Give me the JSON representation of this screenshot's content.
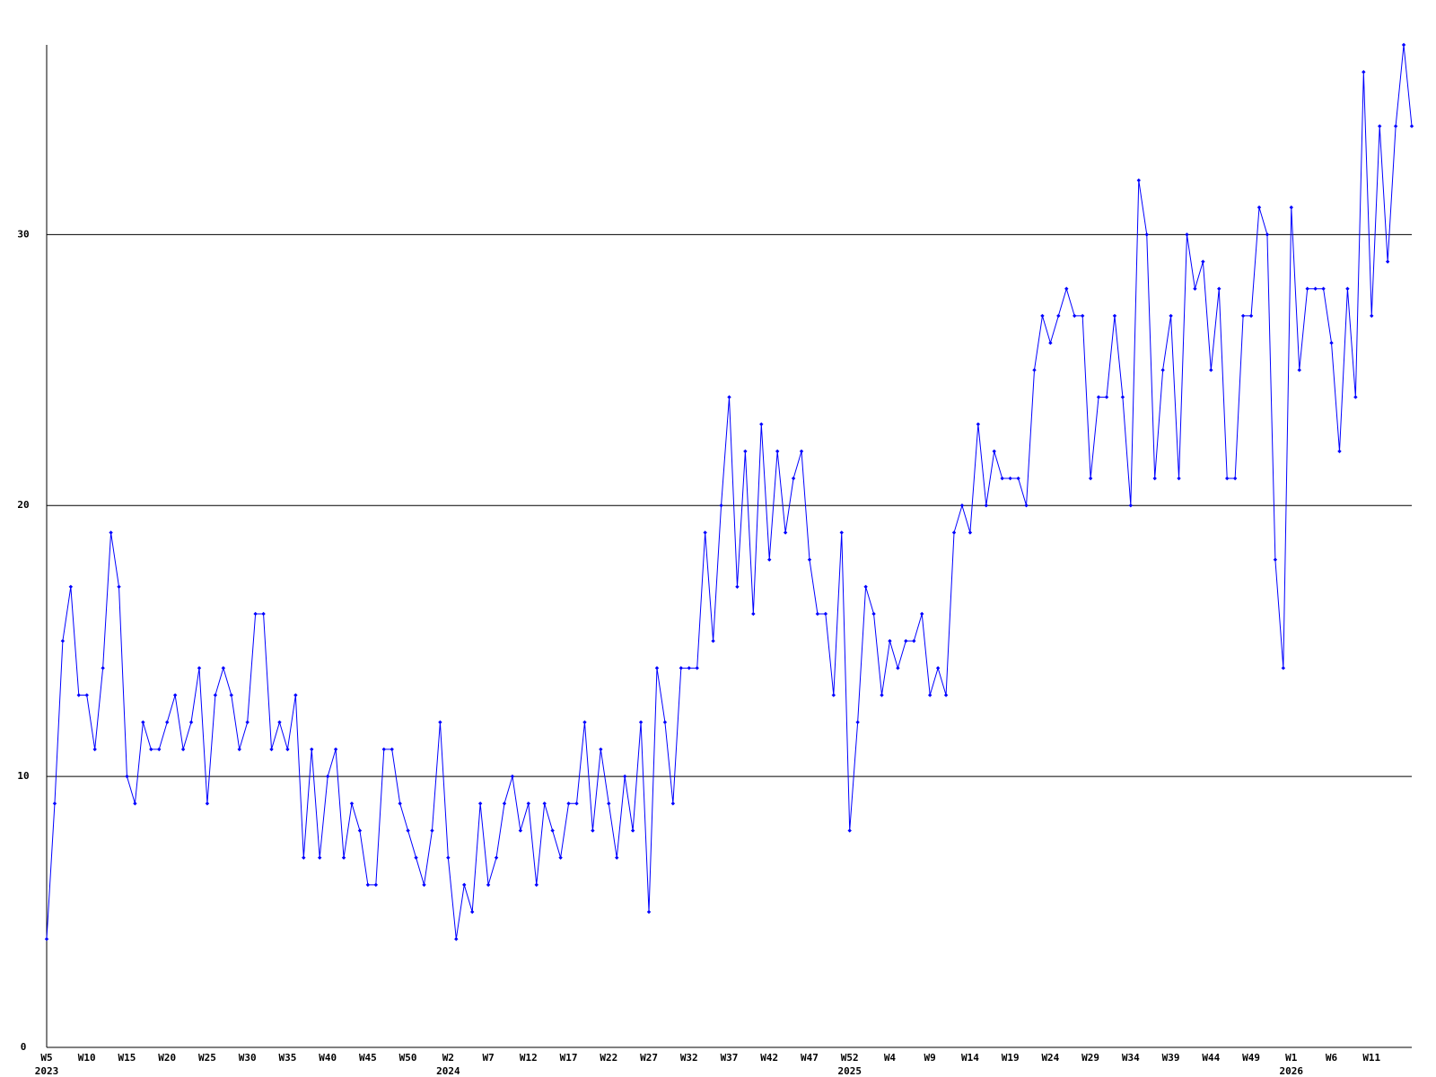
{
  "chart_data": {
    "type": "line",
    "categories": [
      "W5",
      null,
      null,
      null,
      null,
      "W10",
      null,
      null,
      null,
      null,
      "W15",
      null,
      null,
      null,
      null,
      "W20",
      null,
      null,
      null,
      null,
      "W25",
      null,
      null,
      null,
      null,
      "W30",
      null,
      null,
      null,
      null,
      "W35",
      null,
      null,
      null,
      null,
      "W40",
      null,
      null,
      null,
      null,
      "W45",
      null,
      null,
      null,
      null,
      "W50",
      null,
      null,
      null,
      null,
      "W2",
      null,
      null,
      null,
      null,
      "W7",
      null,
      null,
      null,
      null,
      "W12",
      null,
      null,
      null,
      null,
      "W17",
      null,
      null,
      null,
      null,
      "W22",
      null,
      null,
      null,
      null,
      "W27",
      null,
      null,
      null,
      null,
      "W32",
      null,
      null,
      null,
      null,
      "W37",
      null,
      null,
      null,
      null,
      "W42",
      null,
      null,
      null,
      null,
      "W47",
      null,
      null,
      null,
      null,
      "W52",
      null,
      null,
      null,
      null,
      "W4",
      null,
      null,
      null,
      null,
      "W9",
      null,
      null,
      null,
      null,
      "W14",
      null,
      null,
      null,
      null,
      "W19",
      null,
      null,
      null,
      null,
      "W24",
      null,
      null,
      null,
      null,
      "W29",
      null,
      null,
      null,
      null,
      "W34",
      null,
      null,
      null,
      null,
      "W39",
      null,
      null,
      null,
      null,
      "W44",
      null,
      null,
      null,
      null,
      "W49",
      null,
      null,
      null,
      null,
      "W1",
      null,
      null,
      null,
      null,
      "W6",
      null,
      null,
      null,
      null,
      "W11",
      null,
      null,
      null,
      null,
      null
    ],
    "years": [
      "2023",
      null,
      null,
      null,
      null,
      null,
      null,
      null,
      null,
      null,
      null,
      null,
      null,
      null,
      null,
      null,
      null,
      null,
      null,
      null,
      null,
      null,
      null,
      null,
      null,
      null,
      null,
      null,
      null,
      null,
      null,
      null,
      null,
      null,
      null,
      null,
      null,
      null,
      null,
      null,
      null,
      null,
      null,
      null,
      null,
      null,
      null,
      null,
      null,
      null,
      "2024",
      null,
      null,
      null,
      null,
      null,
      null,
      null,
      null,
      null,
      null,
      null,
      null,
      null,
      null,
      null,
      null,
      null,
      null,
      null,
      null,
      null,
      null,
      null,
      null,
      null,
      null,
      null,
      null,
      null,
      null,
      null,
      null,
      null,
      null,
      null,
      null,
      null,
      null,
      null,
      null,
      null,
      null,
      null,
      null,
      null,
      null,
      null,
      null,
      null,
      "2025",
      null,
      null,
      null,
      null,
      null,
      null,
      null,
      null,
      null,
      null,
      null,
      null,
      null,
      null,
      null,
      null,
      null,
      null,
      null,
      null,
      null,
      null,
      null,
      null,
      null,
      null,
      null,
      null,
      null,
      null,
      null,
      null,
      null,
      null,
      null,
      null,
      null,
      null,
      null,
      null,
      null,
      null,
      null,
      null,
      null,
      null,
      null,
      null,
      null,
      null,
      null,
      null,
      null,
      null,
      "2026",
      null,
      null,
      null,
      null,
      null,
      null,
      null,
      null,
      null,
      null,
      null,
      null,
      null,
      null,
      null
    ],
    "series": [
      {
        "color": "#0000ff",
        "values": [
          4,
          9,
          15,
          17,
          13,
          13,
          11,
          14,
          19,
          17,
          10,
          9,
          12,
          11,
          11,
          12,
          13,
          11,
          12,
          14,
          9,
          13,
          14,
          13,
          11,
          12,
          16,
          16,
          11,
          12,
          11,
          13,
          7,
          11,
          7,
          10,
          11,
          7,
          9,
          8,
          6,
          6,
          11,
          11,
          9,
          8,
          7,
          6,
          8,
          12,
          7,
          4,
          6,
          5,
          9,
          6,
          7,
          9,
          10,
          8,
          9,
          6,
          9,
          8,
          7,
          9,
          9,
          12,
          8,
          11,
          9,
          7,
          10,
          8,
          12,
          5,
          14,
          12,
          9,
          14,
          14,
          14,
          19,
          15,
          20,
          24,
          17,
          22,
          16,
          23,
          18,
          22,
          19,
          21,
          22,
          18,
          16,
          16,
          13,
          19,
          8,
          12,
          17,
          16,
          13,
          15,
          14,
          15,
          15,
          16,
          13,
          14,
          13,
          19,
          20,
          19,
          23,
          20,
          22,
          21,
          21,
          21,
          20,
          25,
          27,
          26,
          27,
          28,
          27,
          27,
          21,
          24,
          24,
          27,
          24,
          20,
          32,
          30,
          21,
          25,
          27,
          21,
          30,
          28,
          29,
          25,
          28,
          21,
          21,
          27,
          27,
          31,
          30,
          18,
          14,
          31,
          25,
          28,
          28,
          28,
          26,
          22,
          28,
          24,
          36,
          27,
          34,
          29,
          34,
          37,
          34
        ]
      }
    ],
    "ylim": [
      0,
      37
    ],
    "yticks": [
      0,
      10,
      20,
      30
    ],
    "grid": true
  }
}
